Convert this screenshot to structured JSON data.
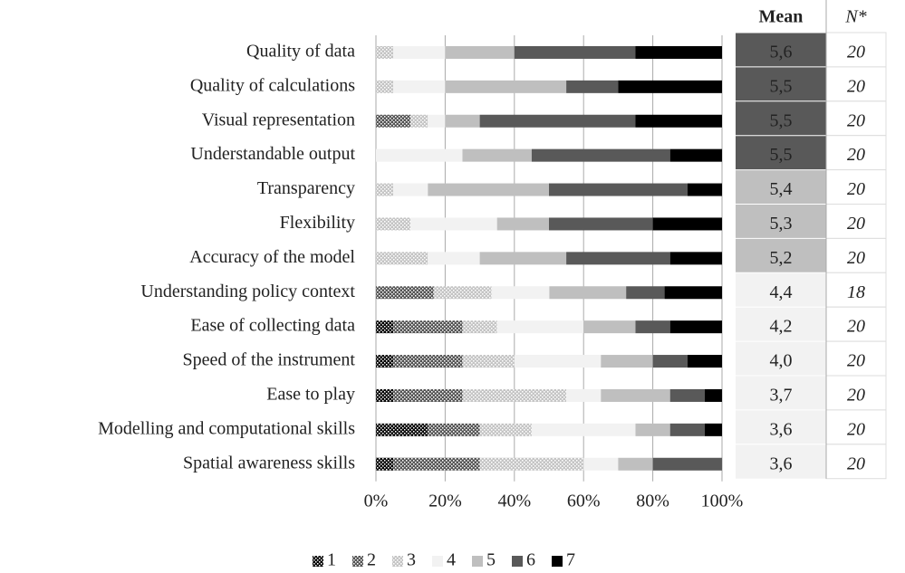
{
  "chart_data": {
    "type": "bar",
    "orientation": "horizontal",
    "stacked": true,
    "categories": [
      "Quality of data",
      "Quality of calculations",
      "Visual representation",
      "Understandable output",
      "Transparency",
      "Flexibility",
      "Accuracy of the model",
      "Understanding policy context",
      "Ease of collecting data",
      "Speed of the instrument",
      "Ease to play",
      "Modelling and computational skills",
      "Spatial awareness skills"
    ],
    "series": [
      {
        "name": "1",
        "color": "#000000",
        "pattern": true,
        "values": [
          0,
          0,
          0,
          0,
          0,
          0,
          0,
          0,
          5,
          5,
          5,
          15,
          5
        ]
      },
      {
        "name": "2",
        "color": "#555555",
        "pattern": true,
        "values": [
          0,
          0,
          10,
          0,
          0,
          0,
          0,
          16.7,
          20,
          20,
          20,
          15,
          25
        ]
      },
      {
        "name": "3",
        "color": "#c4c4c4",
        "pattern": true,
        "values": [
          5,
          5,
          5,
          0,
          5,
          10,
          15,
          16.7,
          10,
          15,
          30,
          15,
          30
        ]
      },
      {
        "name": "4",
        "color": "#f2f2f2",
        "pattern": false,
        "values": [
          15,
          15,
          5,
          25,
          10,
          25,
          15,
          16.7,
          25,
          25,
          10,
          30,
          10
        ]
      },
      {
        "name": "5",
        "color": "#bfbfbf",
        "pattern": false,
        "values": [
          20,
          35,
          10,
          20,
          35,
          15,
          25,
          22.2,
          15,
          15,
          20,
          10,
          10
        ]
      },
      {
        "name": "6",
        "color": "#595959",
        "pattern": false,
        "values": [
          35,
          15,
          45,
          40,
          40,
          30,
          30,
          11.1,
          10,
          10,
          10,
          10,
          20
        ]
      },
      {
        "name": "7",
        "color": "#000000",
        "pattern": false,
        "values": [
          25,
          30,
          25,
          15,
          10,
          20,
          15,
          16.6,
          15,
          10,
          5,
          5,
          0
        ]
      }
    ],
    "xlim": [
      0,
      100
    ],
    "xticks": [
      {
        "value": 0,
        "label": "0%"
      },
      {
        "value": 20,
        "label": "20%"
      },
      {
        "value": 40,
        "label": "40%"
      },
      {
        "value": 60,
        "label": "60%"
      },
      {
        "value": 80,
        "label": "80%"
      },
      {
        "value": 100,
        "label": "100%"
      }
    ],
    "grid": true,
    "legend": "bottom"
  },
  "table": {
    "headers": [
      "Mean",
      "N*"
    ],
    "rows": [
      [
        "5,6",
        "20"
      ],
      [
        "5,5",
        "20"
      ],
      [
        "5,5",
        "20"
      ],
      [
        "5,5",
        "20"
      ],
      [
        "5,4",
        "20"
      ],
      [
        "5,3",
        "20"
      ],
      [
        "5,2",
        "20"
      ],
      [
        "4,4",
        "18"
      ],
      [
        "4,2",
        "20"
      ],
      [
        "4,0",
        "20"
      ],
      [
        "3,7",
        "20"
      ],
      [
        "3,6",
        "20"
      ],
      [
        "3,6",
        "20"
      ]
    ],
    "cell_colors": [
      "#595959",
      "#595959",
      "#595959",
      "#595959",
      "#bfbfbf",
      "#bfbfbf",
      "#bfbfbf",
      "#f2f2f2",
      "#f2f2f2",
      "#f2f2f2",
      "#f2f2f2",
      "#f2f2f2",
      "#f2f2f2"
    ]
  }
}
